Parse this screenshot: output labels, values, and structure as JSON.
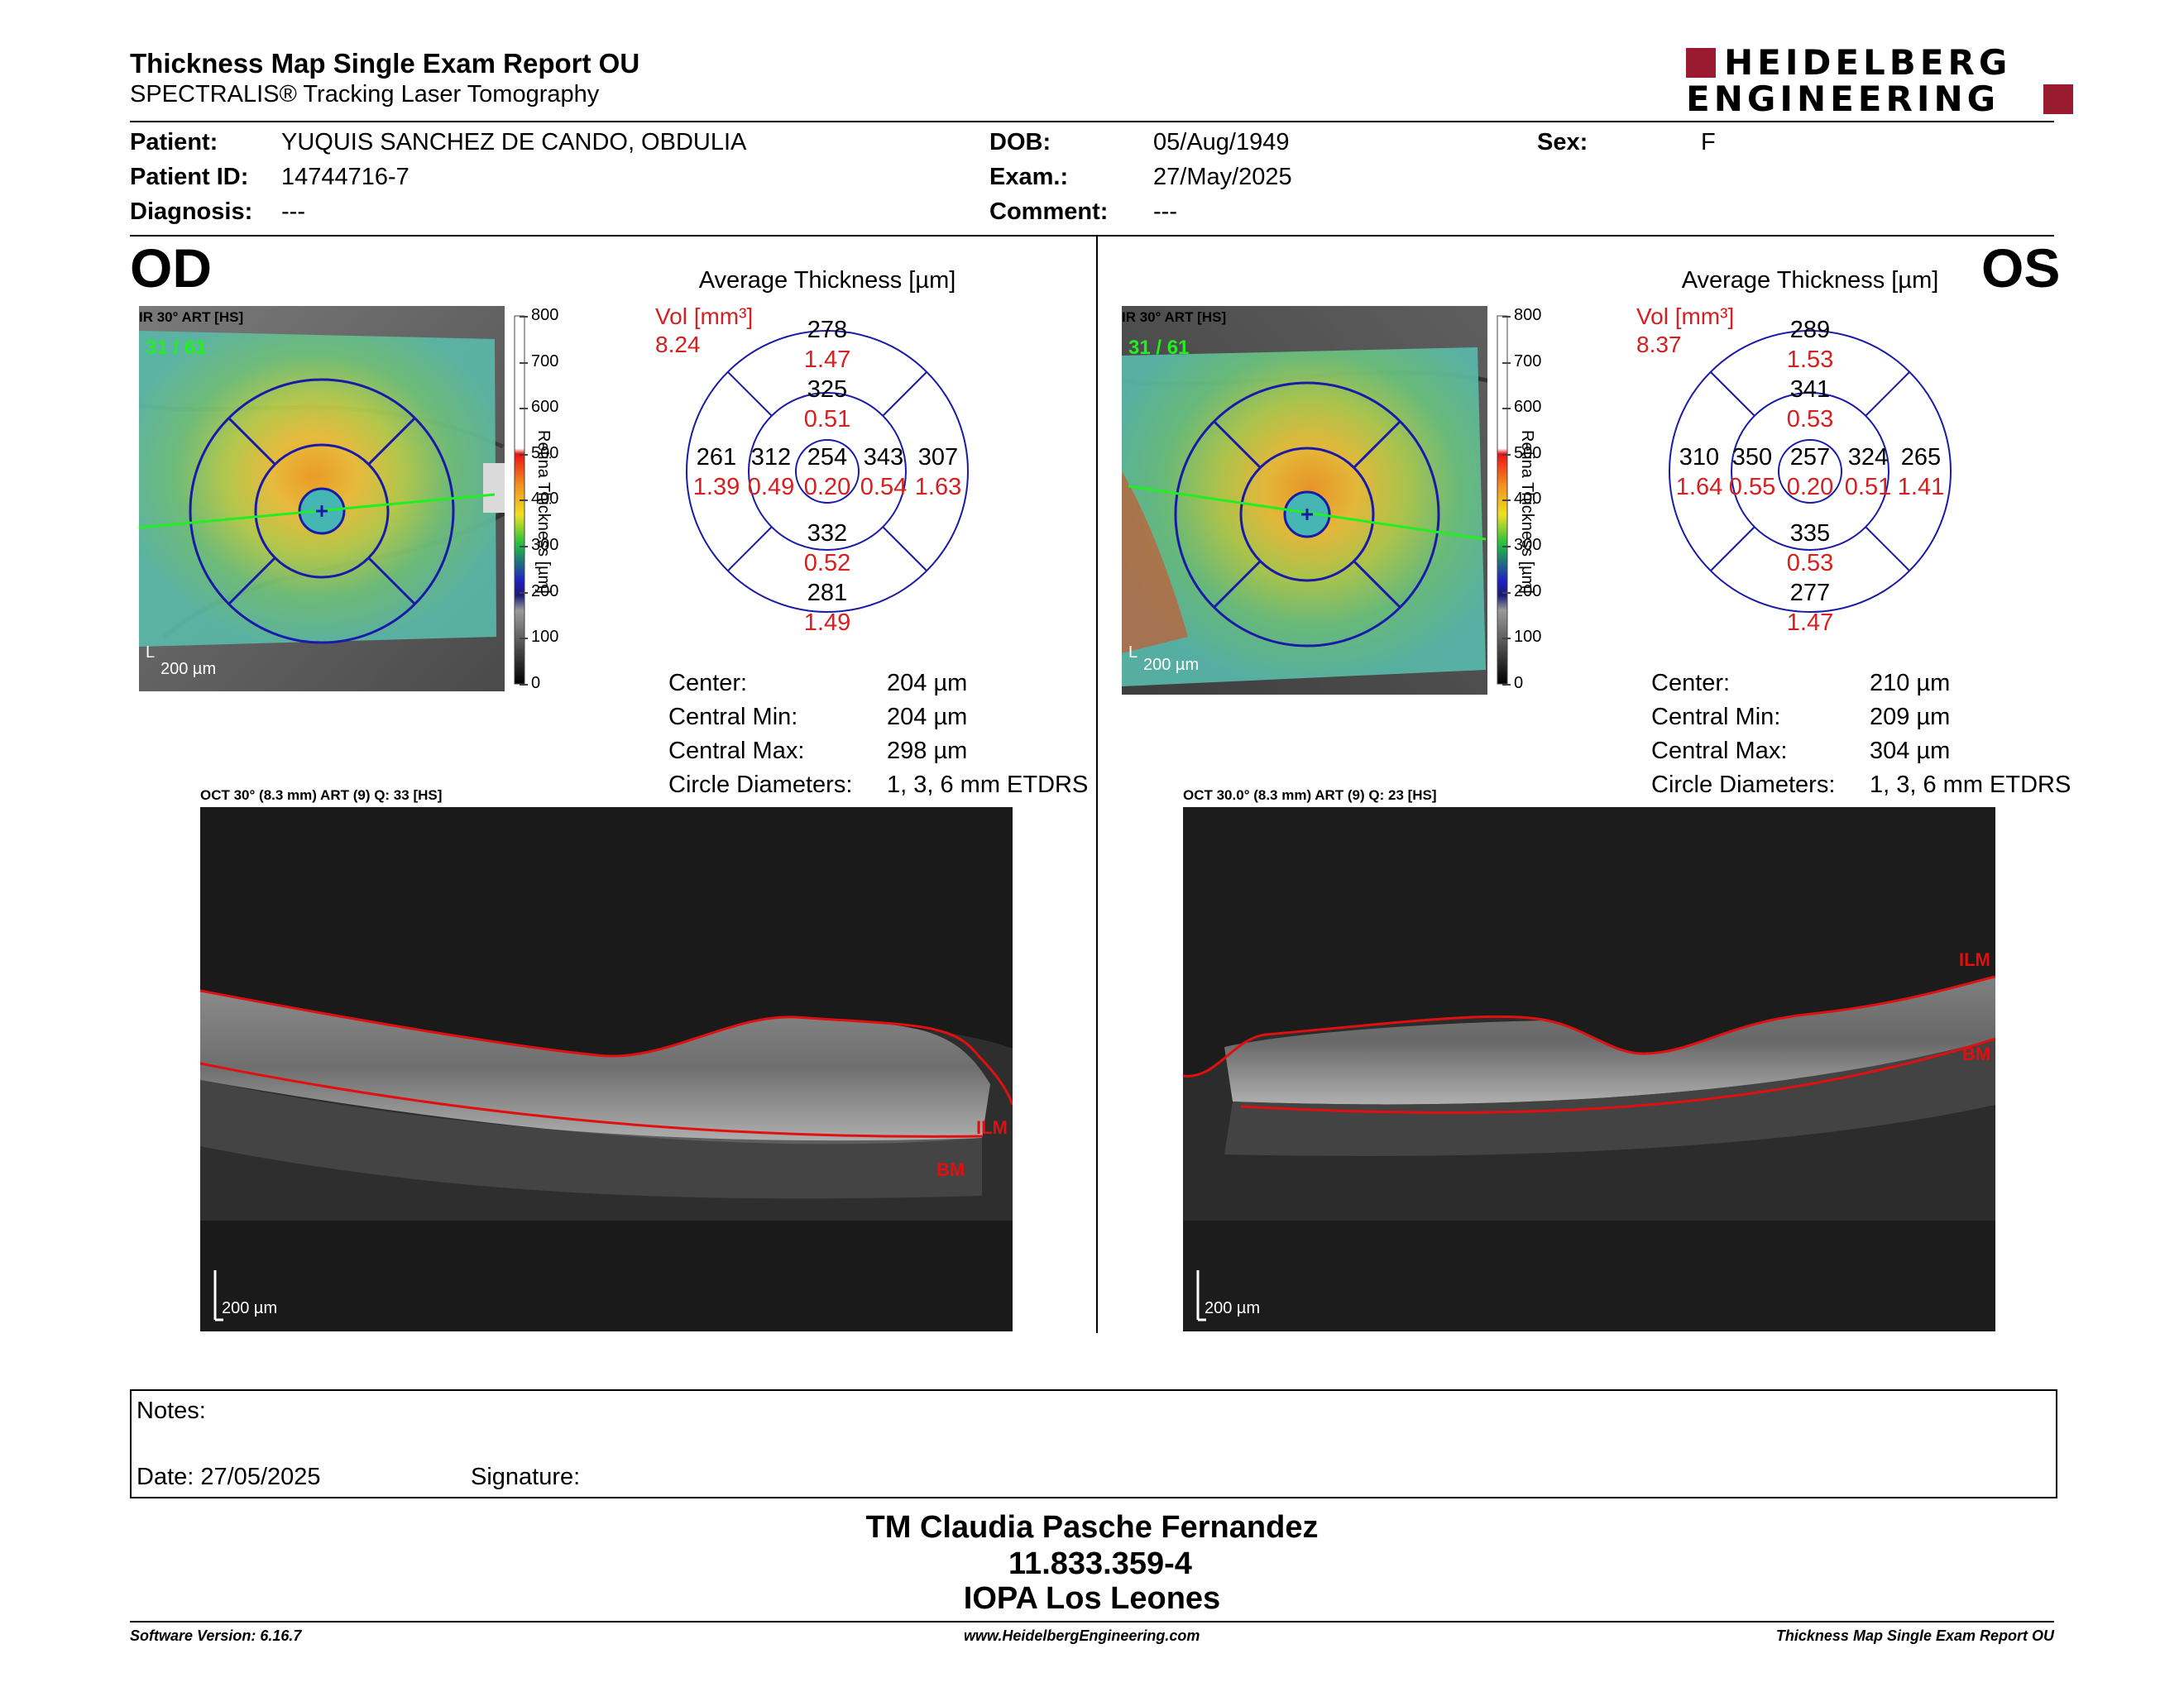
{
  "header": {
    "title": "Thickness Map Single Exam Report OU",
    "subtitle": "SPECTRALIS® Tracking Laser Tomography",
    "logo_line1": "HEIDELBERG",
    "logo_line2": "ENGINEERING",
    "brand_color": "#9a1b2f"
  },
  "patient": {
    "patient_label": "Patient:",
    "patient_value": "YUQUIS SANCHEZ DE CANDO, OBDULIA",
    "id_label": "Patient ID:",
    "id_value": "14744716-7",
    "diagnosis_label": "Diagnosis:",
    "diagnosis_value": "---",
    "dob_label": "DOB:",
    "dob_value": "05/Aug/1949",
    "exam_label": "Exam.:",
    "exam_value": "27/May/2025",
    "comment_label": "Comment:",
    "comment_value": "---",
    "sex_label": "Sex:",
    "sex_value": "F"
  },
  "scale": {
    "ticks": [
      "800",
      "700",
      "600",
      "500",
      "400",
      "300",
      "200",
      "100",
      "0"
    ],
    "title": "Retina Thickness [µm]"
  },
  "od": {
    "eye": "OD",
    "ir_caption": "IR 30° ART [HS]",
    "ir_count": "31 / 61",
    "scale_bar": "200 µm",
    "grid_title": "Average Thickness [µm]",
    "vol_label": "Vol [mm³]",
    "vol_total": "8.24",
    "grid": {
      "outer_sup": "278",
      "outer_sup_vol": "1.47",
      "inner_sup": "325",
      "inner_sup_vol": "0.51",
      "outer_left": "261",
      "outer_left_vol": "1.39",
      "inner_left": "312",
      "inner_left_vol": "0.49",
      "center": "254",
      "center_vol": "0.20",
      "inner_right": "343",
      "inner_right_vol": "0.54",
      "outer_right": "307",
      "outer_right_vol": "1.63",
      "inner_inf": "332",
      "inner_inf_vol": "0.52",
      "outer_inf": "281",
      "outer_inf_vol": "1.49"
    },
    "stats": {
      "center_label": "Center:",
      "center_value": "204 µm",
      "min_label": "Central Min:",
      "min_value": "204 µm",
      "max_label": "Central Max:",
      "max_value": "298 µm",
      "diam_label": "Circle Diameters:",
      "diam_value": "1, 3, 6 mm ETDRS"
    },
    "oct_caption": "OCT 30° (8.3 mm) ART (9) Q: 33 [HS]",
    "oct_scale": "200 µm",
    "ilm": "ILM",
    "bm": "BM"
  },
  "os": {
    "eye": "OS",
    "ir_caption": "IR 30° ART [HS]",
    "ir_count": "31 / 61",
    "scale_bar": "200 µm",
    "grid_title": "Average Thickness [µm]",
    "vol_label": "Vol [mm³]",
    "vol_total": "8.37",
    "grid": {
      "outer_sup": "289",
      "outer_sup_vol": "1.53",
      "inner_sup": "341",
      "inner_sup_vol": "0.53",
      "outer_left": "310",
      "outer_left_vol": "1.64",
      "inner_left": "350",
      "inner_left_vol": "0.55",
      "center": "257",
      "center_vol": "0.20",
      "inner_right": "324",
      "inner_right_vol": "0.51",
      "outer_right": "265",
      "outer_right_vol": "1.41",
      "inner_inf": "335",
      "inner_inf_vol": "0.53",
      "outer_inf": "277",
      "outer_inf_vol": "1.47"
    },
    "stats": {
      "center_label": "Center:",
      "center_value": "210 µm",
      "min_label": "Central Min:",
      "min_value": "209 µm",
      "max_label": "Central Max:",
      "max_value": "304 µm",
      "diam_label": "Circle Diameters:",
      "diam_value": "1, 3, 6 mm ETDRS"
    },
    "oct_caption": "OCT 30.0° (8.3 mm) ART (9) Q: 23 [HS]",
    "oct_scale": "200 µm",
    "ilm": "ILM",
    "bm": "BM"
  },
  "notes": {
    "notes_label": "Notes:",
    "date_label": "Date: 27/05/2025",
    "signature_label": "Signature:"
  },
  "signer": {
    "name": "TM Claudia Pasche Fernandez",
    "id": "11.833.359-4",
    "org": "IOPA Los Leones"
  },
  "footer": {
    "software": "Software Version: 6.16.7",
    "website": "www.HeidelbergEngineering.com",
    "report": "Thickness Map Single Exam Report OU"
  },
  "colors": {
    "grid_blue": "#1a1aa8",
    "vol_red": "#d42020",
    "ilm_red": "#e01010",
    "scan_green": "#22ee22"
  }
}
